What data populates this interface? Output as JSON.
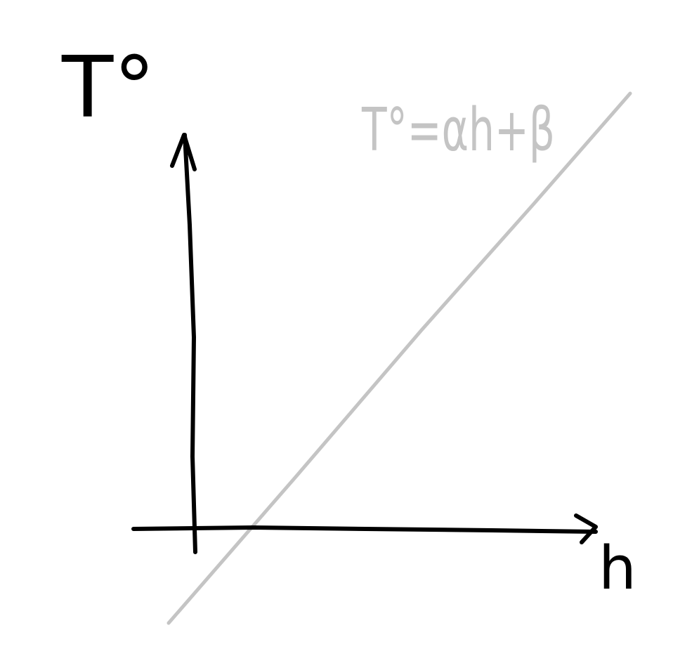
{
  "y_axis_label": "T°",
  "x_axis_label": "h",
  "line_label": "T°=αh+β"
}
